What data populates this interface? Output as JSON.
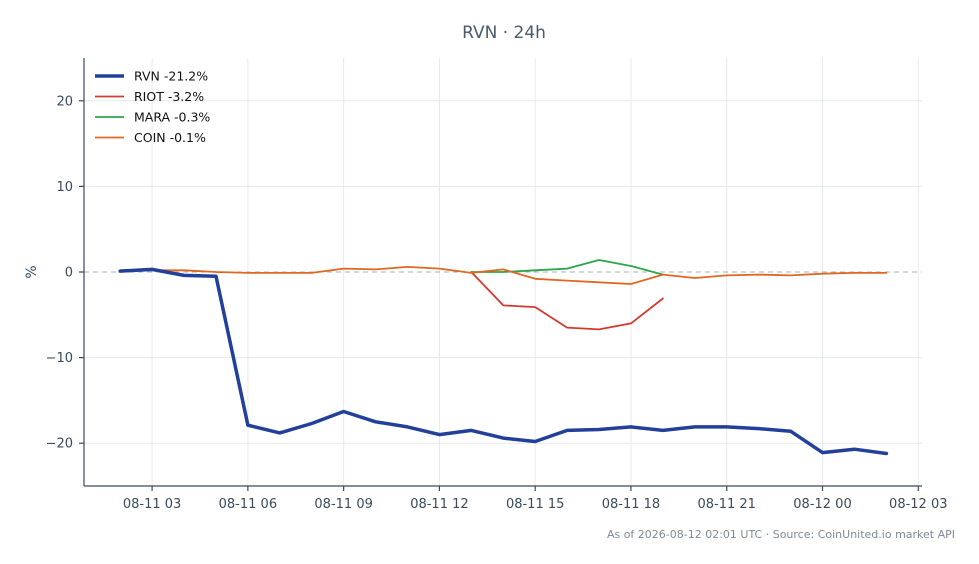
{
  "chart_data": {
    "type": "line",
    "title": "RVN · 24h",
    "xlabel": "",
    "ylabel": "%",
    "x_ticks": [
      "08-11 03",
      "08-11 06",
      "08-11 09",
      "08-11 12",
      "08-11 15",
      "08-11 18",
      "08-11 21",
      "08-12 00",
      "08-12 03"
    ],
    "xlim": [
      "2026-08-11 00:52",
      "2026-08-12 03:07"
    ],
    "y_ticks": [
      -20,
      -10,
      0,
      10,
      20
    ],
    "ylim": [
      -25,
      25
    ],
    "grid": true,
    "legend_position": "top-left",
    "footer": "As of 2026-08-12 02:01 UTC · Source: CoinUnited.io market API",
    "series": [
      {
        "name": "RVN -21.2%",
        "color": "#22409a",
        "width": 3.5,
        "x": [
          "2026-08-11 02:00",
          "2026-08-11 03:00",
          "2026-08-11 04:00",
          "2026-08-11 05:00",
          "2026-08-11 06:00",
          "2026-08-11 07:00",
          "2026-08-11 08:00",
          "2026-08-11 09:00",
          "2026-08-11 10:00",
          "2026-08-11 11:00",
          "2026-08-11 12:00",
          "2026-08-11 13:00",
          "2026-08-11 14:00",
          "2026-08-11 15:00",
          "2026-08-11 16:00",
          "2026-08-11 17:00",
          "2026-08-11 18:00",
          "2026-08-11 19:00",
          "2026-08-11 20:00",
          "2026-08-11 21:00",
          "2026-08-11 22:00",
          "2026-08-11 23:00",
          "2026-08-12 00:00",
          "2026-08-12 01:00",
          "2026-08-12 02:00"
        ],
        "y": [
          0.1,
          0.3,
          -0.4,
          -0.5,
          -17.9,
          -18.8,
          -17.7,
          -16.3,
          -17.5,
          -18.1,
          -19.0,
          -18.5,
          -19.4,
          -19.8,
          -18.5,
          -18.4,
          -18.1,
          -18.5,
          -18.1,
          -18.1,
          -18.3,
          -18.6,
          -21.1,
          -20.7,
          -21.2
        ]
      },
      {
        "name": "RIOT -3.2%",
        "color": "#d03a2f",
        "width": 1.8,
        "x": [
          "2026-08-11 13:00",
          "2026-08-11 14:00",
          "2026-08-11 15:00",
          "2026-08-11 16:00",
          "2026-08-11 17:00",
          "2026-08-11 18:00",
          "2026-08-11 19:00"
        ],
        "y": [
          0.0,
          -3.9,
          -4.1,
          -6.5,
          -6.7,
          -6.0,
          -3.1
        ]
      },
      {
        "name": "MARA -0.3%",
        "color": "#2ca44a",
        "width": 1.8,
        "x": [
          "2026-08-11 13:00",
          "2026-08-11 14:00",
          "2026-08-11 15:00",
          "2026-08-11 16:00",
          "2026-08-11 17:00",
          "2026-08-11 18:00",
          "2026-08-11 19:00"
        ],
        "y": [
          0.0,
          0.0,
          0.2,
          0.4,
          1.4,
          0.7,
          -0.3
        ]
      },
      {
        "name": "COIN -0.1%",
        "color": "#e0671f",
        "width": 1.8,
        "x": [
          "2026-08-11 02:00",
          "2026-08-11 03:00",
          "2026-08-11 04:00",
          "2026-08-11 05:00",
          "2026-08-11 06:00",
          "2026-08-11 07:00",
          "2026-08-11 08:00",
          "2026-08-11 09:00",
          "2026-08-11 10:00",
          "2026-08-11 11:00",
          "2026-08-11 12:00",
          "2026-08-11 13:00",
          "2026-08-11 14:00",
          "2026-08-11 15:00",
          "2026-08-11 16:00",
          "2026-08-11 17:00",
          "2026-08-11 18:00",
          "2026-08-11 19:00",
          "2026-08-11 20:00",
          "2026-08-11 21:00",
          "2026-08-11 22:00",
          "2026-08-11 23:00",
          "2026-08-12 00:00",
          "2026-08-12 01:00",
          "2026-08-12 02:00"
        ],
        "y": [
          0.2,
          0.2,
          0.2,
          0.0,
          -0.1,
          -0.1,
          -0.1,
          0.4,
          0.3,
          0.6,
          0.4,
          -0.1,
          0.3,
          -0.8,
          -1.0,
          -1.2,
          -1.4,
          -0.3,
          -0.7,
          -0.4,
          -0.3,
          -0.4,
          -0.2,
          -0.1,
          -0.1
        ]
      }
    ]
  }
}
